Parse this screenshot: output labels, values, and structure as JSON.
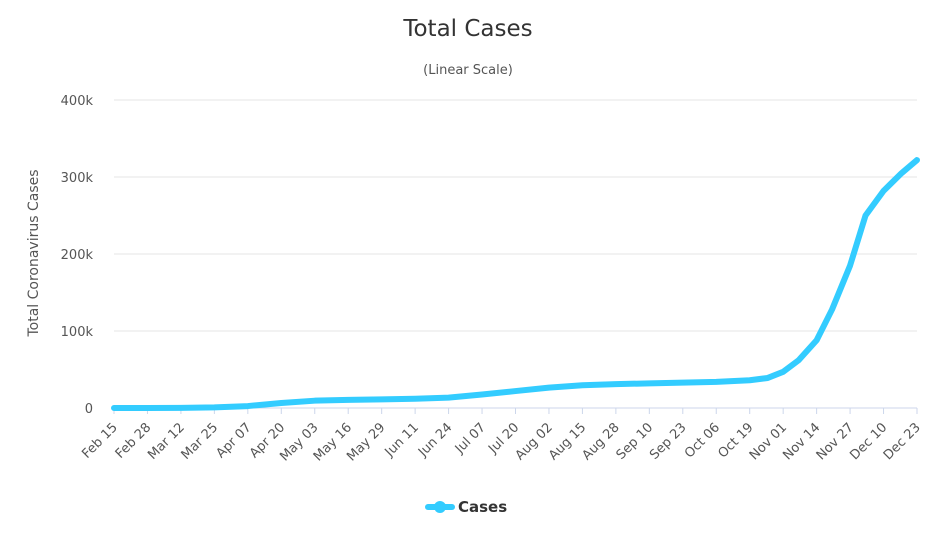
{
  "chart_data": {
    "type": "line",
    "title": "Total Cases",
    "subtitle": "(Linear Scale)",
    "ylabel": "Total Coronavirus Cases",
    "xlabel": "",
    "ylim": [
      0,
      400000
    ],
    "y_ticks": [
      {
        "value": 0,
        "label": "0"
      },
      {
        "value": 100000,
        "label": "100k"
      },
      {
        "value": 200000,
        "label": "200k"
      },
      {
        "value": 300000,
        "label": "300k"
      },
      {
        "value": 400000,
        "label": "400k"
      }
    ],
    "x_tick_labels": [
      "Feb 15",
      "Feb 28",
      "Mar 12",
      "Mar 25",
      "Apr 07",
      "Apr 20",
      "May 03",
      "May 16",
      "May 29",
      "Jun 11",
      "Jun 24",
      "Jul 07",
      "Jul 20",
      "Aug 02",
      "Aug 15",
      "Aug 28",
      "Sep 10",
      "Sep 23",
      "Oct 06",
      "Oct 19",
      "Nov 01",
      "Nov 14",
      "Nov 27",
      "Dec 10",
      "Dec 23"
    ],
    "grid": true,
    "legend_position": "bottom-center",
    "series": [
      {
        "name": "Cases",
        "color": "#33ccff",
        "x": [
          "Feb 15",
          "Feb 28",
          "Mar 12",
          "Mar 25",
          "Apr 07",
          "Apr 20",
          "May 03",
          "May 16",
          "May 29",
          "Jun 11",
          "Jun 24",
          "Jul 07",
          "Jul 20",
          "Aug 02",
          "Aug 15",
          "Aug 28",
          "Sep 10",
          "Sep 23",
          "Oct 06",
          "Oct 19",
          "Oct 26",
          "Nov 01",
          "Nov 07",
          "Nov 14",
          "Nov 20",
          "Nov 27",
          "Dec 03",
          "Dec 10",
          "Dec 17",
          "Dec 23"
        ],
        "values": [
          0,
          50,
          200,
          800,
          2500,
          6500,
          9500,
          10500,
          11200,
          12000,
          13500,
          17500,
          22000,
          26500,
          29500,
          31000,
          32000,
          33000,
          34000,
          36000,
          39000,
          47000,
          62000,
          88000,
          128000,
          185000,
          250000,
          282000,
          305000,
          322000
        ]
      }
    ]
  }
}
